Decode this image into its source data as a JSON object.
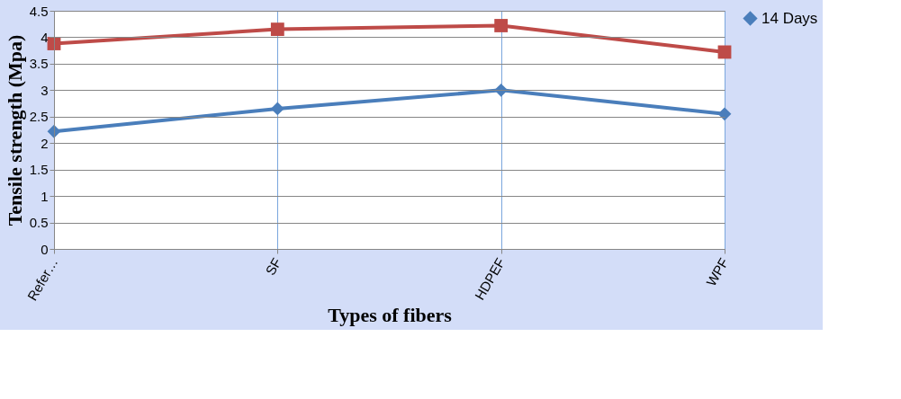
{
  "chart_data": {
    "type": "line",
    "xlabel": "Types of fibers",
    "ylabel": "Tensile strength (Mpa)",
    "categories": [
      "Refer…",
      "SF",
      "HDPEF",
      "WPF"
    ],
    "series": [
      {
        "name": "14 Days",
        "color": "#4a7ebb",
        "marker": "diamond",
        "values": [
          2.22,
          2.65,
          3.0,
          2.55
        ]
      },
      {
        "color": "#be4b48",
        "marker": "square",
        "values": [
          3.88,
          4.15,
          4.22,
          3.72
        ]
      }
    ],
    "ylim": [
      0,
      4.5
    ],
    "yticks": [
      0,
      0.5,
      1,
      1.5,
      2,
      2.5,
      3,
      3.5,
      4,
      4.5
    ],
    "grid": true,
    "legend": "right"
  }
}
